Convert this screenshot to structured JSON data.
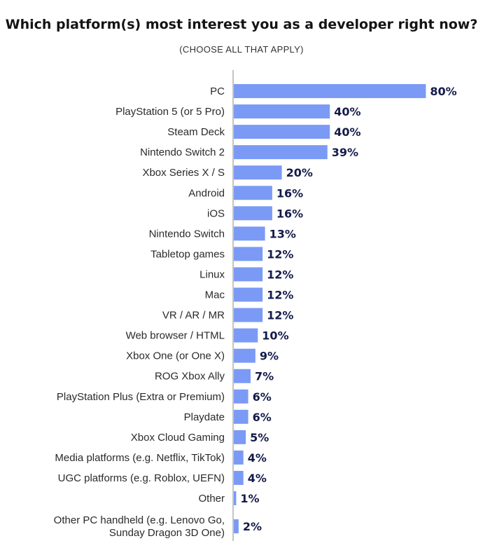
{
  "chart_data": {
    "type": "bar",
    "orientation": "horizontal",
    "title": "Which platform(s) most interest you as a developer right now?",
    "subtitle": "(CHOOSE ALL THAT APPLY)",
    "bar_color": "#7b9af5",
    "label_color": "#141b4a",
    "value_suffix": "%",
    "xlim": [
      0,
      100
    ],
    "categories": [
      [
        "PC"
      ],
      [
        "PlayStation 5 (or 5 Pro)"
      ],
      [
        "Steam Deck"
      ],
      [
        "Nintendo Switch 2"
      ],
      [
        "Xbox Series X / S"
      ],
      [
        "Android"
      ],
      [
        "iOS"
      ],
      [
        "Nintendo Switch"
      ],
      [
        "Tabletop games"
      ],
      [
        "Linux"
      ],
      [
        "Mac"
      ],
      [
        "VR / AR / MR"
      ],
      [
        "Web browser / HTML"
      ],
      [
        "Xbox One (or One X)"
      ],
      [
        "ROG Xbox Ally"
      ],
      [
        "PlayStation Plus (Extra or Premium)"
      ],
      [
        "Playdate"
      ],
      [
        "Xbox Cloud Gaming"
      ],
      [
        "Media platforms (e.g. Netflix, TikTok)"
      ],
      [
        "UGC platforms (e.g. Roblox, UEFN)"
      ],
      [
        "Other"
      ],
      [
        "Other PC handheld (e.g. Lenovo Go,",
        "Sunday Dragon 3D One)"
      ]
    ],
    "values": [
      80,
      40,
      40,
      39,
      20,
      16,
      16,
      13,
      12,
      12,
      12,
      12,
      10,
      9,
      7,
      6,
      6,
      5,
      4,
      4,
      1,
      2
    ]
  }
}
